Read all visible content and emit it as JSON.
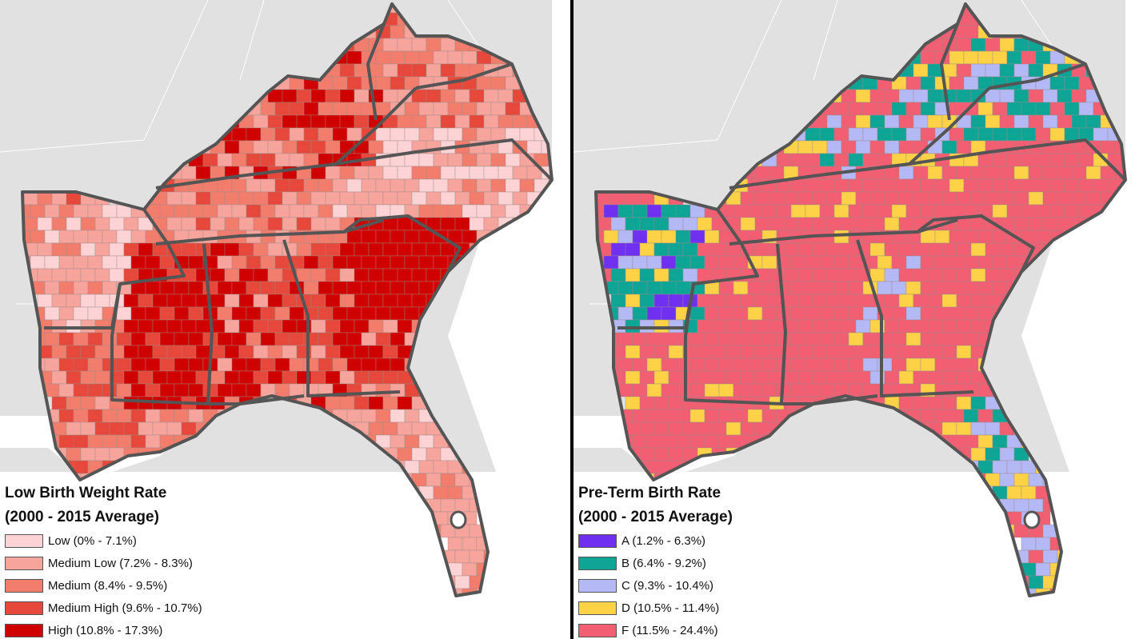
{
  "maps": [
    {
      "legend_title_line1": "Low Birth Weight Rate",
      "legend_title_line2": "(2000 - 2015 Average)",
      "classes": [
        {
          "label": "Low (0% - 7.1%)",
          "color": "#fdd3d5"
        },
        {
          "label": "Medium Low (7.2% - 8.3%)",
          "color": "#f7a59c"
        },
        {
          "label": "Medium (8.4% - 9.5%)",
          "color": "#f27d6d"
        },
        {
          "label": "Medium High (9.6% - 10.7%)",
          "color": "#e6493b"
        },
        {
          "label": "High (10.8% - 17.3%)",
          "color": "#d10000"
        }
      ]
    },
    {
      "legend_title_line1": "Pre-Term Birth Rate",
      "legend_title_line2": "(2000 - 2015 Average)",
      "classes": [
        {
          "label": "A (1.2% - 6.3%)",
          "color": "#7030f0"
        },
        {
          "label": "B (6.4% - 9.2%)",
          "color": "#0fa596"
        },
        {
          "label": "C (9.3% - 10.4%)",
          "color": "#b4b8f4"
        },
        {
          "label": "D (10.5% - 11.4%)",
          "color": "#fdd247"
        },
        {
          "label": "F (11.5% - 24.4%)",
          "color": "#f25e72"
        }
      ]
    }
  ],
  "colors": {
    "background_land": "#e1e1e1",
    "water": "#ffffff",
    "state_border": "#555555"
  }
}
